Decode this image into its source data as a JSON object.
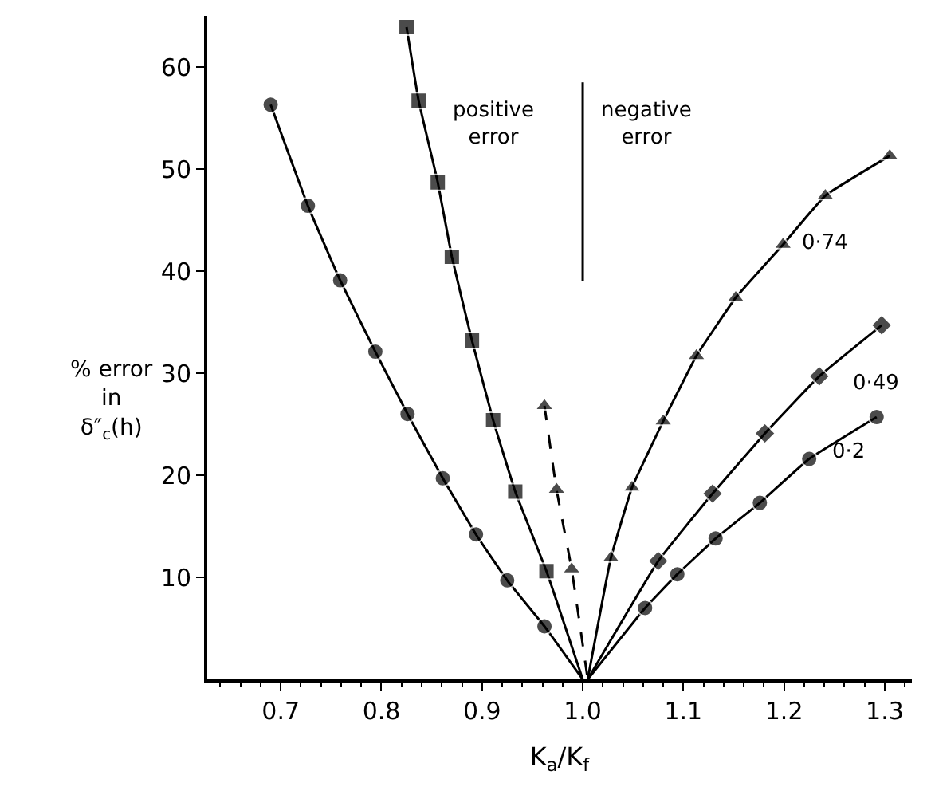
{
  "chart_data": {
    "type": "line",
    "xlabel": "K$_{a}$/K$_{f}$",
    "ylabel": "% error\nin\nδ″$_{c}$(h)",
    "xlim": [
      0.627,
      1.327
    ],
    "ylim": [
      0,
      65
    ],
    "xticks": [
      0.7,
      0.8,
      0.9,
      {
        "value": 1.0,
        "label": "1.0"
      },
      1.1,
      1.2,
      1.3
    ],
    "yticks": [
      10,
      20,
      30,
      40,
      50,
      60
    ],
    "series": [
      {
        "color": "#000000",
        "marker": "circle",
        "line_style": "solid",
        "x": [
          0.69,
          0.727,
          0.759,
          0.794,
          0.826,
          0.861,
          0.894,
          0.925,
          0.962,
          1.0
        ],
        "values": [
          56.3,
          46.4,
          39.1,
          32.1,
          26.0,
          19.7,
          14.2,
          9.7,
          5.2,
          0
        ]
      },
      {
        "color": "#000000",
        "marker": "square",
        "line_style": "solid",
        "x": [
          0.825,
          0.837,
          0.856,
          0.87,
          0.89,
          0.911,
          0.933,
          0.964,
          1.0
        ],
        "values": [
          63.9,
          56.7,
          48.7,
          41.4,
          33.2,
          25.4,
          18.4,
          10.6,
          0
        ]
      },
      {
        "color": "#000000",
        "marker": "triangle",
        "line_style": "dashed",
        "x": [
          0.962,
          0.974,
          0.989,
          1.005
        ],
        "values": [
          26.8,
          18.6,
          10.8,
          0
        ]
      },
      {
        "color": "#000000",
        "marker": "triangle",
        "line_style": "solid",
        "x": [
          1.005,
          1.028,
          1.049,
          1.08,
          1.113,
          1.152,
          1.199,
          1.241,
          1.305
        ],
        "values": [
          0,
          11.9,
          18.8,
          25.3,
          31.7,
          37.4,
          42.6,
          47.4,
          51.3
        ]
      },
      {
        "color": "#000000",
        "marker": "diamond",
        "line_style": "solid",
        "x": [
          1.005,
          1.075,
          1.129,
          1.181,
          1.235,
          1.297
        ],
        "values": [
          0,
          11.6,
          18.2,
          24.1,
          29.7,
          34.7
        ]
      },
      {
        "color": "#000000",
        "marker": "circle",
        "line_style": "solid",
        "x": [
          1.005,
          1.062,
          1.094,
          1.132,
          1.176,
          1.225,
          1.292
        ],
        "values": [
          0,
          7.0,
          10.3,
          13.8,
          17.3,
          21.6,
          25.7
        ]
      }
    ],
    "ref_lines": [
      {
        "axis": "x",
        "value": 1.0,
        "line_style": "solid",
        "color": "#000000"
      }
    ],
    "annotations": [
      "positive\nerror",
      "negative\nerror",
      "0·74",
      "0·49",
      "0·2"
    ]
  }
}
